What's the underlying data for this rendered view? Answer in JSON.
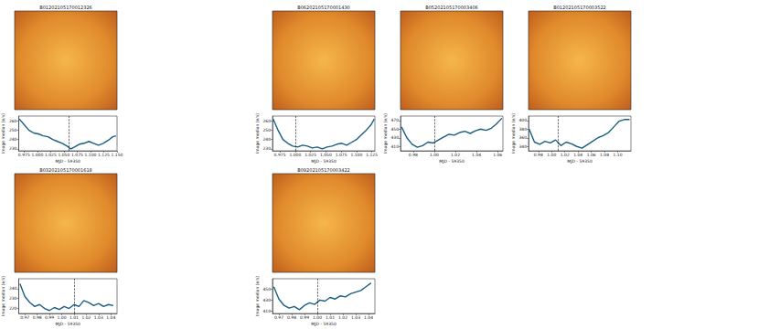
{
  "chart_data": [
    {
      "type": "line",
      "title": "B01202105170012326",
      "x_label": "MJD - 59350",
      "y_label": "Image median (e/s)",
      "color": "#1b5e83",
      "line_style": "solid",
      "x": [
        0.966,
        0.975,
        0.984,
        0.993,
        1.002,
        1.011,
        1.02,
        1.029,
        1.038,
        1.047,
        1.056,
        1.063,
        1.07,
        1.079,
        1.088,
        1.097,
        1.106,
        1.115,
        1.124,
        1.133,
        1.142,
        1.148
      ],
      "values": [
        262,
        256,
        250,
        247,
        246,
        244,
        243,
        240,
        238,
        236,
        233,
        230,
        232,
        235,
        236,
        238,
        236,
        234,
        236,
        239,
        243,
        244
      ],
      "vline": 1.057,
      "xlim": [
        0.965,
        1.15
      ],
      "xticks": [
        0.975,
        {
          "value": 1.0,
          "label": "1.000"
        },
        1.025,
        {
          "value": 1.05,
          "label": "1.050"
        },
        1.075,
        {
          "value": 1.1,
          "label": "1.100"
        },
        1.125,
        {
          "value": 1.15,
          "label": "1.150"
        }
      ],
      "ylim": [
        228,
        265
      ],
      "yticks": [
        230,
        240,
        250,
        260
      ]
    },
    {
      "type": "line",
      "title": "B06202105170001430",
      "x_label": "MJD - 59350",
      "y_label": "Image median (e/s)",
      "color": "#1b5e83",
      "line_style": "solid",
      "x": [
        0.964,
        0.972,
        0.98,
        0.988,
        0.996,
        1.004,
        1.012,
        1.02,
        1.028,
        1.036,
        1.044,
        1.052,
        1.06,
        1.068,
        1.076,
        1.084,
        1.092,
        1.1,
        1.108,
        1.116,
        1.124,
        1.129
      ],
      "values": [
        262,
        250,
        240,
        236,
        233,
        232,
        234,
        233,
        231,
        232,
        230,
        232,
        233,
        235,
        236,
        234,
        237,
        240,
        245,
        250,
        256,
        262
      ],
      "vline": 1.005,
      "xlim": [
        0.963,
        1.13
      ],
      "xticks": [
        0.975,
        {
          "value": 1.0,
          "label": "1.000"
        },
        1.025,
        {
          "value": 1.05,
          "label": "1.050"
        },
        1.075,
        {
          "value": 1.1,
          "label": "1.100"
        },
        1.125
      ],
      "ylim": [
        228,
        265
      ],
      "yticks": [
        230,
        240,
        250,
        260
      ]
    },
    {
      "type": "line",
      "title": "B05202105170003406",
      "x_label": "MJD - 59350",
      "y_label": "Image median (e/s)",
      "color": "#1b5e83",
      "line_style": "solid",
      "x": [
        0.969,
        0.974,
        0.979,
        0.984,
        0.989,
        0.994,
        0.999,
        1.004,
        1.009,
        1.014,
        1.019,
        1.024,
        1.029,
        1.034,
        1.039,
        1.044,
        1.049,
        1.054,
        1.059,
        1.064
      ],
      "values": [
        455,
        430,
        415,
        408,
        412,
        420,
        418,
        425,
        432,
        438,
        436,
        442,
        445,
        440,
        446,
        450,
        447,
        452,
        462,
        475
      ],
      "vline": 1.005,
      "xlim": [
        0.968,
        1.065
      ],
      "xticks": [
        0.98,
        {
          "value": 1.0,
          "label": "1.00"
        },
        1.02,
        1.04,
        1.06
      ],
      "ylim": [
        400,
        480
      ],
      "yticks": [
        410,
        430,
        450,
        470
      ]
    },
    {
      "type": "line",
      "title": "B01202105170003522",
      "x_label": "MJD - 59350",
      "y_label": "Image median (e/s)",
      "color": "#1b5e83",
      "line_style": "solid",
      "x": [
        0.966,
        0.974,
        0.982,
        0.99,
        0.998,
        1.006,
        1.014,
        1.022,
        1.03,
        1.038,
        1.046,
        1.054,
        1.062,
        1.07,
        1.078,
        1.086,
        1.094,
        1.102,
        1.11,
        1.118
      ],
      "values": [
        380,
        350,
        345,
        352,
        348,
        355,
        342,
        350,
        346,
        340,
        336,
        344,
        352,
        360,
        365,
        372,
        385,
        398,
        402,
        402
      ],
      "vline": 1.01,
      "xlim": [
        0.965,
        1.12
      ],
      "xticks": [
        0.98,
        {
          "value": 1.0,
          "label": "1.00"
        },
        1.02,
        1.04,
        1.06,
        1.08,
        {
          "value": 1.1,
          "label": "1.10"
        }
      ],
      "ylim": [
        330,
        410
      ],
      "yticks": [
        340,
        360,
        380,
        400
      ]
    },
    {
      "type": "line",
      "title": "B03202105170001618",
      "x_label": "MJD - 59350",
      "y_label": "Image median (e/s)",
      "color": "#1b5e83",
      "line_style": "solid",
      "x": [
        0.966,
        0.97,
        0.974,
        0.978,
        0.982,
        0.986,
        0.99,
        0.994,
        0.998,
        1.002,
        1.006,
        1.01,
        1.014,
        1.018,
        1.022,
        1.026,
        1.03,
        1.034,
        1.038,
        1.042
      ],
      "values": [
        245,
        232,
        226,
        222,
        224,
        220,
        218,
        221,
        219,
        222,
        220,
        224,
        222,
        228,
        226,
        223,
        225,
        222,
        224,
        223
      ],
      "vline": 1.01,
      "xlim": [
        0.965,
        1.045
      ],
      "xticks": [
        0.97,
        0.98,
        0.99,
        {
          "value": 1.0,
          "label": "1.00"
        },
        1.01,
        1.02,
        1.03,
        1.04
      ],
      "ylim": [
        215,
        250
      ],
      "yticks": [
        220,
        230,
        240
      ]
    },
    {
      "type": "line",
      "title": "B09202105170003422",
      "x_label": "MJD - 59350",
      "y_label": "Image median (e/s)",
      "color": "#1b5e83",
      "line_style": "solid",
      "x": [
        0.966,
        0.97,
        0.974,
        0.978,
        0.982,
        0.986,
        0.99,
        0.994,
        0.998,
        1.002,
        1.006,
        1.01,
        1.014,
        1.018,
        1.022,
        1.026,
        1.03,
        1.034,
        1.038,
        1.042
      ],
      "values": [
        455,
        432,
        420,
        415,
        418,
        412,
        420,
        425,
        422,
        430,
        428,
        435,
        432,
        438,
        436,
        442,
        445,
        448,
        455,
        462
      ],
      "vline": 1.005,
      "xlim": [
        0.965,
        1.045
      ],
      "xticks": [
        0.97,
        0.98,
        0.99,
        {
          "value": 1.0,
          "label": "1.00"
        },
        1.01,
        1.02,
        1.03,
        1.04
      ],
      "ylim": [
        405,
        470
      ],
      "yticks": [
        410,
        430,
        450
      ]
    }
  ]
}
